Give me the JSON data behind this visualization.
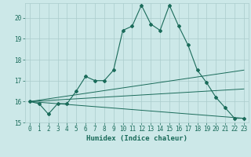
{
  "title": "",
  "xlabel": "Humidex (Indice chaleur)",
  "ylabel": "",
  "background_color": "#cce8e8",
  "grid_color": "#aacccc",
  "line_color": "#1a6b5a",
  "xlim": [
    -0.5,
    23.5
  ],
  "ylim": [
    15.0,
    20.7
  ],
  "yticks": [
    15,
    16,
    17,
    18,
    19,
    20
  ],
  "xticks": [
    0,
    1,
    2,
    3,
    4,
    5,
    6,
    7,
    8,
    9,
    10,
    11,
    12,
    13,
    14,
    15,
    16,
    17,
    18,
    19,
    20,
    21,
    22,
    23
  ],
  "line1_x": [
    0,
    1,
    2,
    3,
    4,
    5,
    6,
    7,
    8,
    9,
    10,
    11,
    12,
    13,
    14,
    15,
    16,
    17,
    18,
    19,
    20,
    21,
    22,
    23
  ],
  "line1_y": [
    16.0,
    15.9,
    15.4,
    15.9,
    15.9,
    16.5,
    17.2,
    17.0,
    17.0,
    17.5,
    19.4,
    19.6,
    20.6,
    19.7,
    19.4,
    20.6,
    19.6,
    18.7,
    17.5,
    16.9,
    16.2,
    15.7,
    15.2,
    15.2
  ],
  "line2_x": [
    0,
    23
  ],
  "line2_y": [
    16.0,
    17.5
  ],
  "line3_x": [
    0,
    23
  ],
  "line3_y": [
    16.0,
    16.6
  ],
  "line4_x": [
    0,
    23
  ],
  "line4_y": [
    16.0,
    15.2
  ],
  "tick_fontsize": 5.5,
  "label_fontsize": 6.5
}
